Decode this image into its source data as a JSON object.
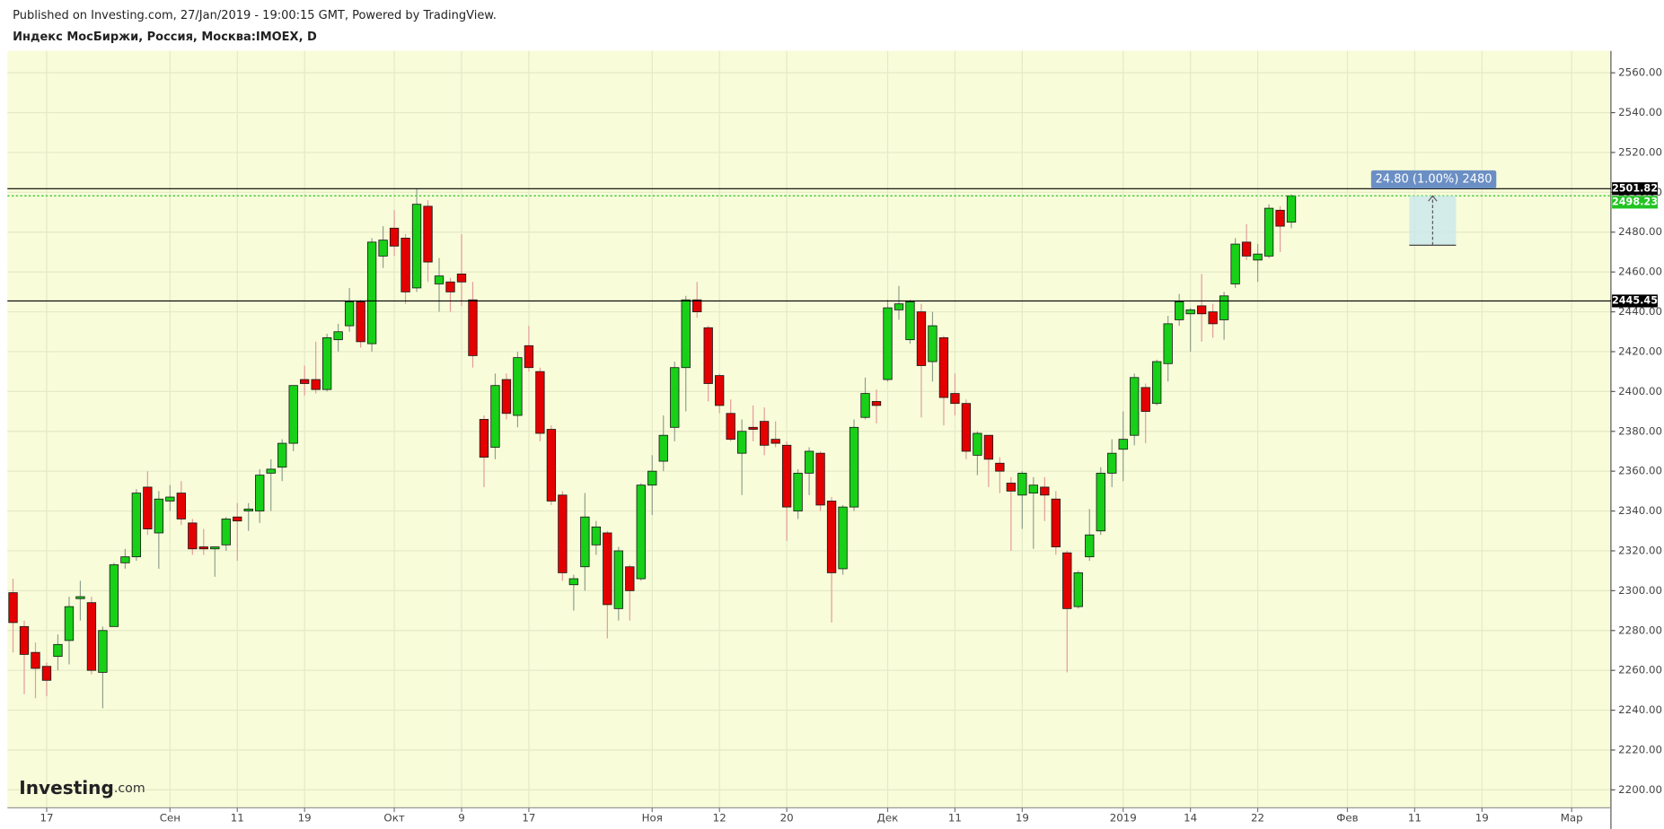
{
  "chart_data": {
    "type": "candlestick",
    "subtitle": "Published on Investing.com, 27/Jan/2019 - 19:00:15 GMT, Powered by TradingView.",
    "title": "Индекс МосБиржи, Россия, Москва:IMOEX, D",
    "watermark": {
      "brand": "Investing",
      "suffix": ".com"
    },
    "categories": [
      null,
      null,
      null,
      "17",
      null,
      null,
      null,
      null,
      null,
      null,
      null,
      null,
      null,
      null,
      "Сен",
      null,
      null,
      null,
      null,
      null,
      "11",
      null,
      null,
      null,
      null,
      null,
      "19",
      null,
      null,
      null,
      null,
      null,
      null,
      null,
      "Окт",
      null,
      null,
      null,
      null,
      null,
      "9",
      null,
      null,
      null,
      null,
      null,
      "17",
      null,
      null,
      null,
      null,
      null,
      null,
      null,
      null,
      null,
      null,
      "Ноя",
      null,
      null,
      null,
      null,
      null,
      "12",
      null,
      null,
      null,
      null,
      null,
      "20",
      null,
      null,
      null,
      null,
      null,
      null,
      null,
      null,
      "Дек",
      null,
      null,
      null,
      null,
      null,
      "11",
      null,
      null,
      null,
      null,
      null,
      "19",
      null,
      null,
      null,
      null,
      null,
      null,
      null,
      null,
      "2019",
      null,
      null,
      null,
      null,
      null,
      "14",
      null,
      null,
      null,
      null,
      null,
      "22",
      null,
      null,
      null,
      null,
      null,
      null,
      null,
      "Фев",
      null,
      null,
      null,
      null,
      null,
      "11",
      null,
      null,
      null,
      null,
      null,
      "19",
      null,
      null,
      null,
      null,
      null,
      null,
      null,
      "Мар",
      null,
      null,
      null
    ],
    "open": [
      2299,
      2282,
      2269,
      2262,
      2267,
      2275,
      2296,
      2294,
      2259,
      2282,
      2314,
      2317,
      2352,
      2329,
      2345,
      2349,
      2334,
      2322,
      2321,
      2323,
      2337,
      2340,
      2340,
      2359,
      2362,
      2374,
      2406,
      2406,
      2401,
      2426,
      2433,
      2445,
      2424,
      2468,
      2482,
      2477,
      2452,
      2493,
      2454,
      2455,
      2459,
      2446,
      2386,
      2372,
      2406,
      2388,
      2423,
      2410,
      2381,
      2348,
      2303,
      2312,
      2323,
      2329,
      2291,
      2312,
      2306,
      2353,
      2365,
      2382,
      2412,
      2446,
      2432,
      2408,
      2389,
      2369,
      2382,
      2385,
      2376,
      2373,
      2340,
      2359,
      2369,
      2345,
      2311,
      2342,
      2387,
      2395,
      2406,
      2441,
      2426,
      2440,
      2415,
      2427,
      2399,
      2394,
      2368,
      2378,
      2364,
      2354,
      2348,
      2349,
      2352,
      2346,
      2319,
      2292,
      2317,
      2330,
      2359,
      2371,
      2378,
      2402,
      2394,
      2414,
      2436,
      2439,
      2443,
      2440,
      2436,
      2454,
      2475,
      2466,
      2468,
      2491,
      2485,
      null,
      null,
      null,
      null,
      null,
      null,
      null,
      null,
      null,
      null,
      null,
      null,
      null,
      null,
      null,
      null,
      null,
      null,
      null,
      null,
      null,
      null,
      null,
      null,
      null,
      null,
      null,
      null
    ],
    "high": [
      2306,
      2285,
      2274,
      2264,
      2278,
      2297,
      2305,
      2297,
      2282,
      2314,
      2321,
      2351,
      2360,
      2350,
      2353,
      2355,
      2336,
      2331,
      2322,
      2337,
      2344,
      2344,
      2361,
      2366,
      2376,
      2403,
      2413,
      2425,
      2429,
      2434,
      2452,
      2446,
      2477,
      2483,
      2491,
      2479,
      2502,
      2496,
      2467,
      2457,
      2479,
      2455,
      2388,
      2409,
      2409,
      2420,
      2433,
      2412,
      2383,
      2350,
      2308,
      2349,
      2335,
      2330,
      2322,
      2313,
      2354,
      2368,
      2388,
      2415,
      2448,
      2455,
      2433,
      2409,
      2396,
      2386,
      2393,
      2392,
      2385,
      2375,
      2361,
      2372,
      2370,
      2347,
      2343,
      2386,
      2407,
      2401,
      2446,
      2453,
      2446,
      2444,
      2440,
      2428,
      2409,
      2396,
      2380,
      2378,
      2367,
      2357,
      2360,
      2357,
      2357,
      2350,
      2320,
      2310,
      2341,
      2362,
      2376,
      2390,
      2409,
      2404,
      2416,
      2438,
      2449,
      2442,
      2459,
      2444,
      2450,
      2477,
      2484,
      2474,
      2494,
      2493,
      2499,
      null,
      null,
      null,
      null,
      null,
      null,
      null,
      null,
      null,
      null,
      null,
      null,
      null,
      null,
      null,
      null,
      null,
      null,
      null,
      null,
      null,
      null,
      null,
      null,
      null,
      null,
      null,
      null
    ],
    "low": [
      2269,
      2248,
      2246,
      2247,
      2260,
      2263,
      2285,
      2258,
      2241,
      2282,
      2311,
      2315,
      2328,
      2311,
      2340,
      2333,
      2318,
      2318,
      2307,
      2320,
      2315,
      2330,
      2334,
      2340,
      2355,
      2370,
      2398,
      2399,
      2400,
      2420,
      2430,
      2422,
      2420,
      2462,
      2468,
      2444,
      2450,
      2455,
      2440,
      2440,
      2443,
      2412,
      2352,
      2366,
      2386,
      2382,
      2410,
      2375,
      2343,
      2305,
      2290,
      2300,
      2318,
      2276,
      2285,
      2285,
      2305,
      2338,
      2360,
      2375,
      2390,
      2437,
      2395,
      2389,
      2375,
      2348,
      2375,
      2368,
      2372,
      2325,
      2336,
      2348,
      2340,
      2284,
      2308,
      2340,
      2386,
      2384,
      2405,
      2436,
      2424,
      2387,
      2405,
      2383,
      2388,
      2366,
      2358,
      2352,
      2349,
      2320,
      2331,
      2321,
      2335,
      2318,
      2259,
      2291,
      2315,
      2328,
      2352,
      2355,
      2373,
      2374,
      2393,
      2405,
      2433,
      2420,
      2425,
      2427,
      2426,
      2452,
      2466,
      2455,
      2467,
      2470,
      2482,
      null,
      null,
      null,
      null,
      null,
      null,
      null,
      null,
      null,
      null,
      null,
      null,
      null,
      null,
      null,
      null,
      null,
      null,
      null,
      null,
      null,
      null,
      null,
      null,
      null,
      null,
      null,
      null
    ],
    "close": [
      2284,
      2268,
      2261,
      2255,
      2273,
      2292,
      2297,
      2260,
      2280,
      2313,
      2317,
      2349,
      2331,
      2346,
      2347,
      2336,
      2321,
      2321,
      2322,
      2336,
      2335,
      2341,
      2358,
      2361,
      2374,
      2403,
      2404,
      2401,
      2427,
      2430,
      2445,
      2425,
      2475,
      2476,
      2473,
      2450,
      2494,
      2465,
      2458,
      2450,
      2455,
      2418,
      2367,
      2403,
      2389,
      2417,
      2412,
      2379,
      2345,
      2309,
      2306,
      2337,
      2332,
      2293,
      2320,
      2300,
      2353,
      2360,
      2378,
      2412,
      2446,
      2440,
      2404,
      2393,
      2376,
      2380,
      2381,
      2373,
      2374,
      2342,
      2359,
      2370,
      2343,
      2309,
      2342,
      2382,
      2399,
      2393,
      2442,
      2444,
      2445,
      2413,
      2433,
      2397,
      2394,
      2370,
      2379,
      2366,
      2360,
      2350,
      2359,
      2353,
      2348,
      2322,
      2291,
      2309,
      2328,
      2359,
      2369,
      2376,
      2407,
      2390,
      2415,
      2434,
      2445,
      2441,
      2439,
      2434,
      2448,
      2474,
      2468,
      2469,
      2492,
      2483,
      2498.23,
      null,
      null,
      null,
      null,
      null,
      null,
      null,
      null,
      null,
      null,
      null,
      null,
      null,
      null,
      null,
      null,
      null,
      null,
      null,
      null,
      null,
      null,
      null,
      null,
      null,
      null,
      null,
      null
    ],
    "up_color": "#18d018",
    "down_color": "#e40000",
    "wick_up_color": "#8fa08f",
    "wick_down_color": "#e59a9a",
    "ylim": [
      2191,
      2571
    ],
    "yticks": [
      {
        "value": 2200,
        "label": "2200.00"
      },
      {
        "value": 2220,
        "label": "2220.00"
      },
      {
        "value": 2240,
        "label": "2240.00"
      },
      {
        "value": 2260,
        "label": "2260.00"
      },
      {
        "value": 2280,
        "label": "2280.00"
      },
      {
        "value": 2300,
        "label": "2300.00"
      },
      {
        "value": 2320,
        "label": "2320.00"
      },
      {
        "value": 2340,
        "label": "2340.00"
      },
      {
        "value": 2360,
        "label": "2360.00"
      },
      {
        "value": 2380,
        "label": "2380.00"
      },
      {
        "value": 2400,
        "label": "2400.00"
      },
      {
        "value": 2420,
        "label": "2420.00"
      },
      {
        "value": 2440,
        "label": "2440.00"
      },
      {
        "value": 2460,
        "label": "2460.00"
      },
      {
        "value": 2480,
        "label": "2480.00"
      },
      {
        "value": 2500,
        "label": "2500.00"
      },
      {
        "value": 2520,
        "label": "2520.00"
      },
      {
        "value": 2540,
        "label": "2540.00"
      },
      {
        "value": 2560,
        "label": "2560.00"
      }
    ],
    "grid": true,
    "hlines": [
      {
        "value": 2501.82,
        "label": "2501.82",
        "color": "#000000"
      },
      {
        "value": 2445.45,
        "label": "2445.45",
        "color": "#000000"
      }
    ],
    "last_price": {
      "value": 2498.23,
      "label": "2498.23",
      "color": "#22c322"
    },
    "measure": {
      "label": "24.80 (1.00%) 2480",
      "start": 2473.43,
      "end": 2498.23
    }
  }
}
